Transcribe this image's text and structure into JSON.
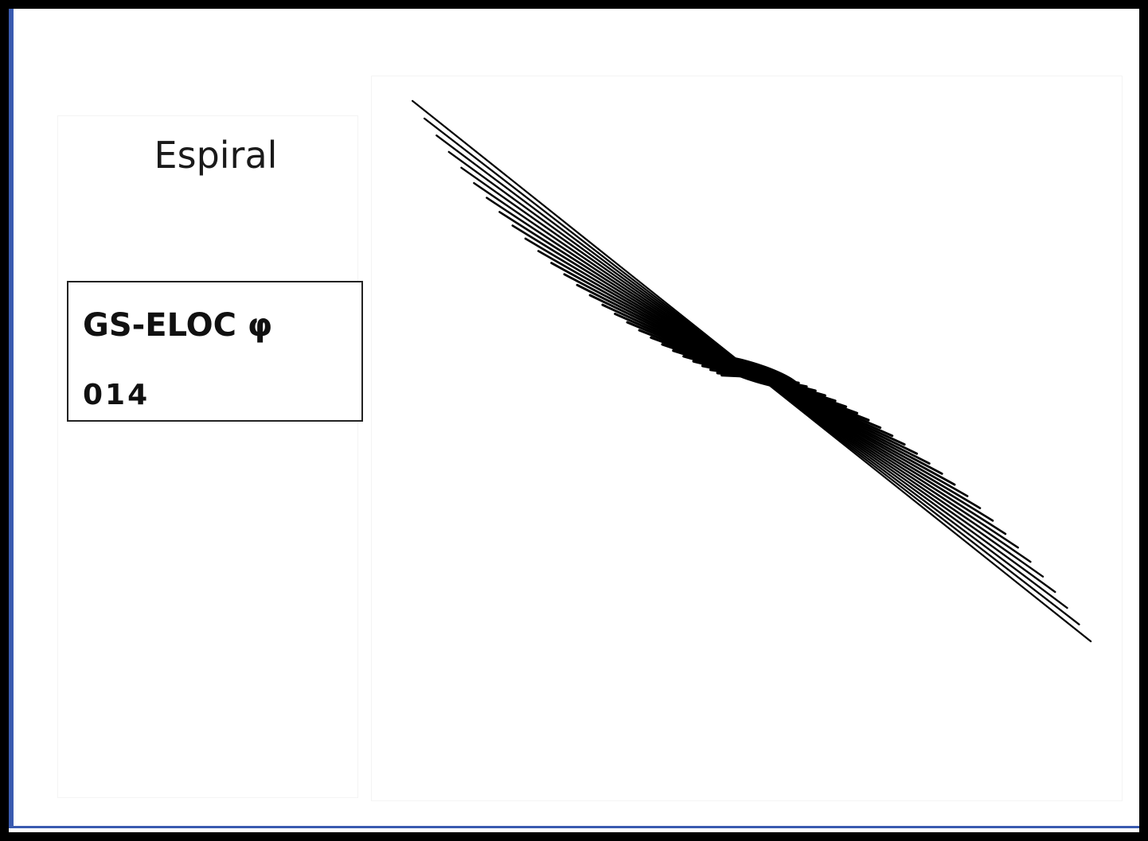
{
  "panel": {
    "title": "Espiral"
  },
  "id_card": {
    "label": "GS-ELOC φ",
    "number": "014"
  },
  "drawing": {
    "stroke_color": "#000000",
    "frame_color": "#000000",
    "accent_color": "#3a5bb0",
    "line_count": 28
  }
}
